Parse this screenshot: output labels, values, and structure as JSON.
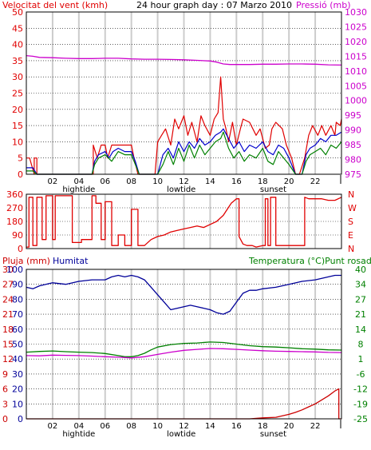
{
  "header": {
    "wind_title": "Velocitat del vent (kmh)",
    "graph_title": "24 hour graph day : 07 Marzo 2010",
    "pressure_title": "Pressió (mb)"
  },
  "colors": {
    "wind_gust": "#e00000",
    "wind_avg": "#0000cc",
    "wind_green": "#008000",
    "pressure": "#cc00cc",
    "direction": "#e00000",
    "humidity": "#000099",
    "temperature": "#008000",
    "dewpoint": "#cc00cc",
    "rain": "#cc0000",
    "grid_vertical": "#cccccc",
    "grid_horizontal": "#000000"
  },
  "icons": {
    "tick_line": "tick-line-icon"
  },
  "chart_data": [
    {
      "type": "line",
      "title": "24 hour graph day : 07 Marzo 2010",
      "y_left_label": "Velocitat del vent (kmh)",
      "y_right_label": "Pressió (mb)",
      "y_left_ticks": [
        "0",
        "5",
        "10",
        "15",
        "20",
        "25",
        "30",
        "35",
        "40",
        "45",
        "50"
      ],
      "y_left_range": [
        0,
        50
      ],
      "y_right_ticks": [
        "975",
        "980",
        "985",
        "990",
        "995",
        "1000",
        "1005",
        "1010",
        "1015",
        "1020",
        "1025",
        "1030"
      ],
      "y_right_range": [
        975,
        1030
      ],
      "x_ticks": [
        "02",
        "04",
        "06",
        "08",
        "10",
        "12",
        "14",
        "16",
        "18",
        "20",
        "22"
      ],
      "x_events": [
        {
          "label": "hightide",
          "x": 4.0
        },
        {
          "label": "lowtide",
          "x": 11.8
        },
        {
          "label": "sunset",
          "x": 18.8
        }
      ],
      "x_range": [
        0,
        24
      ],
      "series": [
        {
          "key": "gust",
          "color": "#e00000",
          "x": [
            0,
            0.25,
            0.6,
            0.6,
            0.8,
            0.8,
            5.1,
            5.1,
            5.4,
            5.7,
            6.0,
            6.2,
            6.5,
            7.0,
            7.5,
            8.0,
            8.2,
            8.5,
            9.8,
            10.0,
            10.3,
            10.6,
            11.0,
            11.3,
            11.6,
            12.0,
            12.3,
            12.6,
            13.0,
            13.3,
            13.6,
            14.0,
            14.3,
            14.6,
            14.8,
            15.0,
            15.2,
            15.4,
            15.7,
            16.0,
            16.3,
            16.5,
            17.0,
            17.5,
            17.8,
            18.2,
            18.5,
            18.7,
            19.0,
            19.5,
            19.8,
            20.2,
            20.5,
            20.8,
            21.2,
            21.5,
            21.8,
            22.2,
            22.5,
            22.8,
            23.2,
            23.5,
            23.6,
            23.9,
            24
          ],
          "y": [
            5,
            5,
            0,
            5,
            5,
            0,
            0,
            9,
            5,
            9,
            9,
            5,
            9,
            9,
            9,
            9,
            5,
            0,
            0,
            10,
            12,
            14,
            9,
            17,
            14,
            18,
            12,
            16,
            10,
            18,
            15,
            12,
            17,
            19,
            30,
            17,
            14,
            10,
            16,
            9,
            14,
            17,
            16,
            12,
            14,
            8,
            9,
            14,
            16,
            14,
            9,
            5,
            0,
            0,
            5,
            12,
            15,
            12,
            15,
            12,
            15,
            12,
            16,
            15,
            17
          ]
        },
        {
          "key": "avg",
          "color": "#0000cc",
          "x": [
            0,
            0.5,
            0.8,
            1,
            2,
            3,
            4,
            5,
            5.2,
            5.5,
            6,
            6.3,
            6.6,
            7,
            7.5,
            8,
            8.3,
            8.6,
            10,
            10.4,
            10.8,
            11.2,
            11.6,
            12,
            12.4,
            12.8,
            13.2,
            13.6,
            14,
            14.4,
            14.8,
            15.0,
            15.4,
            15.8,
            16.2,
            16.6,
            17,
            17.5,
            18,
            18.4,
            18.8,
            19.2,
            19.6,
            20,
            20.5,
            21,
            21.3,
            21.6,
            22,
            22.4,
            22.8,
            23.2,
            23.6,
            24
          ],
          "y": [
            2,
            2,
            0,
            0,
            0,
            0,
            0,
            0,
            4,
            6,
            7,
            5,
            7,
            8,
            7,
            7,
            4,
            0,
            0,
            6,
            8,
            5,
            10,
            7,
            10,
            8,
            11,
            9,
            10,
            12,
            13,
            14,
            11,
            8,
            10,
            7,
            9,
            8,
            10,
            7,
            6,
            9,
            8,
            5,
            0,
            0,
            6,
            8,
            9,
            11,
            10,
            12,
            12,
            13
          ]
        },
        {
          "key": "green",
          "color": "#008000",
          "x": [
            0,
            0.5,
            0.8,
            1,
            4,
            5,
            5.2,
            5.5,
            6,
            6.5,
            7,
            7.5,
            8,
            8.3,
            8.6,
            10,
            10.4,
            10.8,
            11.2,
            11.6,
            12,
            12.4,
            12.8,
            13.2,
            13.6,
            14,
            14.4,
            14.8,
            15.0,
            15.4,
            15.8,
            16.2,
            16.6,
            17,
            17.5,
            18,
            18.4,
            18.8,
            19.2,
            19.6,
            20,
            20.5,
            21,
            21.3,
            21.6,
            22,
            22.4,
            22.8,
            23.2,
            23.6,
            24
          ],
          "y": [
            1,
            1,
            0,
            0,
            0,
            0,
            3,
            5,
            6,
            4,
            7,
            6,
            6,
            3,
            0,
            0,
            3,
            7,
            3,
            8,
            4,
            9,
            5,
            9,
            6,
            8,
            10,
            11,
            13,
            8,
            5,
            7,
            4,
            6,
            5,
            8,
            4,
            3,
            7,
            5,
            3,
            0,
            0,
            4,
            6,
            7,
            8,
            6,
            9,
            8,
            10
          ]
        },
        {
          "key": "pressure",
          "color": "#cc00cc",
          "x": [
            0,
            0.5,
            1,
            2,
            3,
            4,
            5,
            6,
            7,
            8,
            9,
            10,
            11,
            12,
            13,
            14,
            14.5,
            15,
            15.5,
            16,
            17,
            18,
            19,
            20,
            21,
            22,
            23,
            24
          ],
          "y": [
            1015.2,
            1015.0,
            1014.6,
            1014.5,
            1014.3,
            1014.2,
            1014.2,
            1014.3,
            1014.3,
            1014.1,
            1014.0,
            1014.0,
            1013.9,
            1013.8,
            1013.6,
            1013.4,
            1013.0,
            1012.4,
            1012.2,
            1012.2,
            1012.2,
            1012.3,
            1012.3,
            1012.4,
            1012.4,
            1012.3,
            1012.1,
            1012.0
          ]
        }
      ]
    },
    {
      "type": "line",
      "y_right_ticks": [
        "N",
        "W",
        "S",
        "E",
        "N"
      ],
      "y_left_ticks": [
        "0",
        "90",
        "180",
        "270",
        "360"
      ],
      "y_range": [
        0,
        360
      ],
      "x_range": [
        0,
        24
      ],
      "series": [
        {
          "key": "direction",
          "color": "#e00000",
          "x": [
            0,
            0.2,
            0.2,
            0.5,
            0.5,
            0.8,
            0.8,
            1.2,
            1.2,
            1.5,
            1.5,
            2.0,
            2.0,
            2.2,
            2.2,
            3.5,
            3.5,
            4.2,
            4.2,
            5.0,
            5.0,
            5.3,
            5.3,
            5.7,
            5.7,
            6.0,
            6.0,
            6.5,
            6.5,
            7.0,
            7.0,
            7.5,
            7.5,
            8.0,
            8.0,
            8.5,
            8.5,
            9.0,
            9.5,
            10,
            10.5,
            11,
            11.5,
            12,
            12.5,
            13,
            13.5,
            14,
            14.5,
            15,
            15.3,
            15.6,
            16,
            16.2,
            16.2,
            16.5,
            16.8,
            17.2,
            17.5,
            18,
            18.2,
            18.2,
            18.4,
            18.4,
            18.6,
            18.6,
            19,
            19,
            19.5,
            20,
            20.5,
            21,
            21.2,
            21.2,
            21.5,
            22,
            22.5,
            23,
            23.5,
            24
          ],
          "y": [
            10,
            10,
            340,
            340,
            20,
            20,
            340,
            340,
            60,
            60,
            350,
            350,
            60,
            60,
            350,
            350,
            40,
            40,
            60,
            60,
            350,
            350,
            300,
            300,
            60,
            60,
            310,
            310,
            20,
            20,
            90,
            90,
            20,
            20,
            260,
            260,
            20,
            20,
            60,
            80,
            90,
            110,
            120,
            130,
            140,
            150,
            140,
            160,
            180,
            220,
            260,
            300,
            330,
            330,
            80,
            30,
            20,
            20,
            10,
            20,
            20,
            330,
            330,
            20,
            20,
            340,
            340,
            20,
            20,
            20,
            20,
            20,
            20,
            340,
            330,
            330,
            330,
            320,
            320,
            340
          ]
        }
      ]
    },
    {
      "type": "line",
      "y_left_label_rain": "Pluja (mm)",
      "y_left_label_humidity": "Humitat",
      "y_right_label": "Temperatura (°C)Punt rosada",
      "y_rain_ticks": [
        "0",
        "3",
        "6",
        "9",
        "12",
        "15",
        "18",
        "21",
        "24",
        "27",
        "30"
      ],
      "y_humidity_ticks": [
        "0",
        "10",
        "20",
        "30",
        "40",
        "50",
        "60",
        "70",
        "80",
        "90",
        "100"
      ],
      "y_temp_ticks": [
        "-25",
        "-19",
        "-12",
        "-6",
        "1",
        "8",
        "14",
        "21",
        "27",
        "34",
        "40"
      ],
      "y_humidity_range": [
        0,
        100
      ],
      "y_temp_range": [
        -25,
        40
      ],
      "x_ticks": [
        "02",
        "04",
        "06",
        "08",
        "10",
        "12",
        "14",
        "16",
        "18",
        "20",
        "22"
      ],
      "x_events": [
        {
          "label": "hightide",
          "x": 4.0
        },
        {
          "label": "lowtide",
          "x": 11.8
        },
        {
          "label": "sunset",
          "x": 18.8
        }
      ],
      "x_range": [
        0,
        24
      ],
      "series": [
        {
          "key": "humidity",
          "color": "#000099",
          "axis": "humidity",
          "x": [
            0,
            0.5,
            1,
            2,
            3,
            4,
            5,
            6,
            6.5,
            7,
            7.5,
            8,
            8.5,
            9,
            9.5,
            10,
            10.5,
            11,
            11.5,
            12,
            12.5,
            13,
            13.5,
            14,
            14.5,
            15,
            15.5,
            16,
            16.5,
            17,
            17.5,
            18,
            19,
            20,
            21,
            22,
            22.5,
            23,
            23.5,
            24
          ],
          "y": [
            88,
            87,
            89,
            91,
            90,
            92,
            93,
            93,
            95,
            96,
            95,
            96,
            95,
            93,
            88,
            83,
            78,
            73,
            74,
            75,
            76,
            75,
            74,
            73,
            71,
            70,
            72,
            78,
            84,
            86,
            86,
            87,
            88,
            90,
            92,
            93,
            94,
            95,
            96,
            96
          ]
        },
        {
          "key": "temperature",
          "color": "#008000",
          "axis": "temp",
          "x": [
            0,
            1,
            2,
            3,
            4,
            5,
            6,
            7,
            7.5,
            8,
            8.5,
            9,
            9.5,
            10,
            11,
            12,
            13,
            14,
            15,
            16,
            17,
            18,
            19,
            20,
            21,
            22,
            23,
            24
          ],
          "y": [
            4,
            4.3,
            4.5,
            4.2,
            4.0,
            3.8,
            3.4,
            2.5,
            2.0,
            2.0,
            2.5,
            3.5,
            5,
            6.2,
            7.3,
            7.8,
            8,
            8.4,
            8.2,
            7.5,
            6.8,
            6.4,
            6.2,
            5.9,
            5.5,
            5.3,
            5.0,
            4.9
          ]
        },
        {
          "key": "dewpoint",
          "color": "#cc00cc",
          "axis": "temp",
          "x": [
            0,
            1,
            2,
            3,
            4,
            5,
            6,
            7,
            8,
            9,
            10,
            11,
            12,
            13,
            14,
            15,
            16,
            17,
            18,
            19,
            20,
            21,
            22,
            23,
            24
          ],
          "y": [
            2.5,
            2.4,
            2.7,
            2.6,
            2.5,
            2.3,
            2.0,
            1.8,
            1.5,
            2.0,
            3.0,
            4.0,
            4.8,
            5.2,
            5.6,
            5.5,
            5.2,
            4.9,
            4.6,
            4.4,
            4.3,
            4.2,
            4.1,
            3.9,
            3.8
          ]
        },
        {
          "key": "rain",
          "color": "#cc0000",
          "axis": "rain",
          "x": [
            0,
            17,
            18,
            19,
            19.5,
            20,
            20.5,
            21,
            21.5,
            22,
            22.5,
            23,
            23.5,
            23.8,
            23.8,
            24
          ],
          "y": [
            0,
            0,
            0.2,
            0.3,
            0.6,
            0.9,
            1.3,
            1.8,
            2.4,
            3.0,
            3.8,
            4.6,
            5.6,
            6.0,
            0,
            0
          ]
        }
      ]
    }
  ]
}
